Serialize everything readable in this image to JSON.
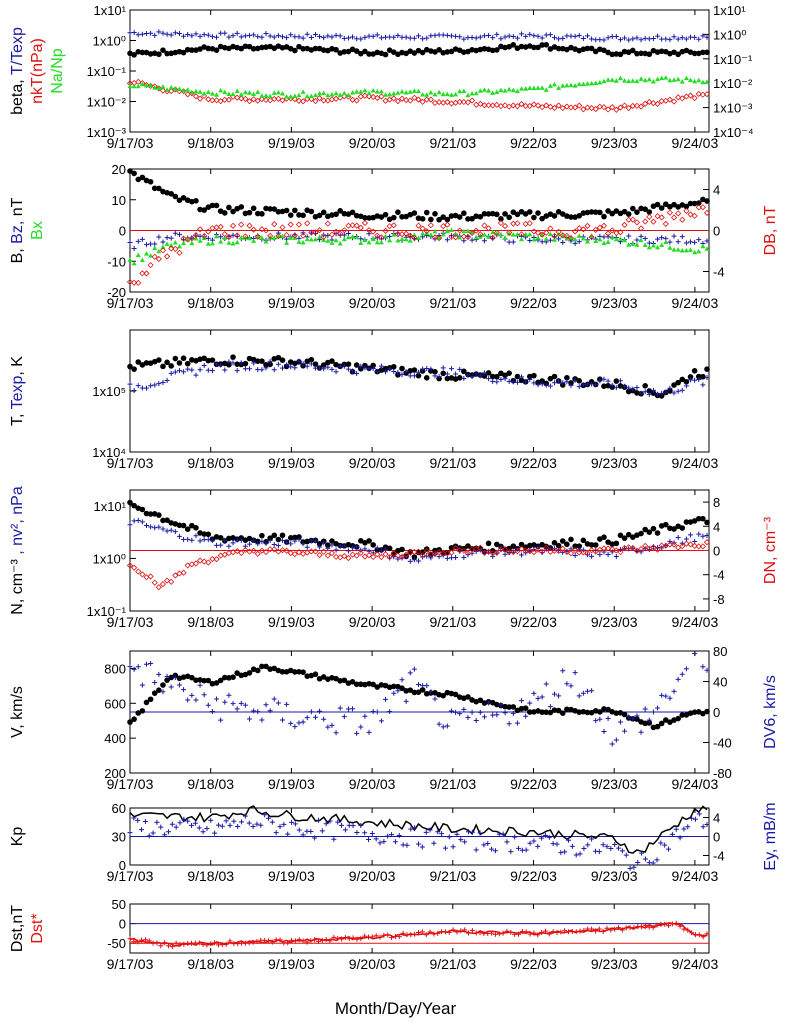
{
  "figure": {
    "x_axis_title": "Month/Day/Year",
    "dates": [
      "9/17/03",
      "9/18/03",
      "9/19/03",
      "9/20/03",
      "9/21/03",
      "9/22/03",
      "9/23/03",
      "9/24/03"
    ],
    "colors": {
      "black": "#000000",
      "blue": "#1a1aa6",
      "red": "#e01010",
      "green": "#22dd22"
    }
  },
  "panels": [
    {
      "id": "ratios",
      "left_label_parts": [
        {
          "text": "beta, ",
          "color": "black"
        },
        {
          "text": "T/Texp",
          "color": "blue"
        }
      ],
      "left_label2_parts": [
        {
          "text": "nkT(nPa)",
          "color": "red"
        }
      ],
      "left_label3_parts": [
        {
          "text": "Na/Np",
          "color": "green"
        }
      ],
      "right_label_parts": [],
      "left_ticks": [
        "1x10⁻³",
        "1x10⁻²",
        "1x10⁻¹",
        "1x10⁰",
        "1x10¹"
      ],
      "right_ticks": [
        "1x10⁻⁴",
        "1x10⁻³",
        "1x10⁻²",
        "1x10⁻¹",
        "1x10⁰",
        "1x10¹"
      ],
      "left_scale": "log",
      "left_range": [
        0.001,
        10
      ],
      "right_scale": "log",
      "right_range": [
        0.0001,
        10
      ]
    },
    {
      "id": "field",
      "left_label_parts": [
        {
          "text": "B, ",
          "color": "black"
        },
        {
          "text": "Bz, ",
          "color": "blue"
        },
        {
          "text": "nT",
          "color": "black"
        }
      ],
      "left_label2_parts": [
        {
          "text": "Bx",
          "color": "green"
        }
      ],
      "left_label3_parts": [],
      "right_label_parts": [
        {
          "text": "DB, nT",
          "color": "red"
        }
      ],
      "left_ticks": [
        "-20",
        "-10",
        "0",
        "10",
        "20"
      ],
      "right_ticks": [
        "-4",
        "0",
        "4"
      ],
      "left_range": [
        -20,
        20
      ],
      "right_range": [
        -6,
        6
      ]
    },
    {
      "id": "temperature",
      "left_label_parts": [
        {
          "text": "T, ",
          "color": "black"
        },
        {
          "text": "Texp",
          "color": "blue"
        },
        {
          "text": ", K",
          "color": "black"
        }
      ],
      "left_label2_parts": [],
      "left_label3_parts": [],
      "right_label_parts": [],
      "left_ticks": [
        "1x10⁴",
        "1x10⁵"
      ],
      "right_ticks": [],
      "left_scale": "log",
      "left_range": [
        10000,
        1000000
      ]
    },
    {
      "id": "density",
      "left_label_parts": [
        {
          "text": "N, cm⁻³",
          "color": "black"
        },
        {
          "text": " , nv², nPa",
          "color": "blue"
        }
      ],
      "left_label2_parts": [],
      "left_label3_parts": [],
      "right_label_parts": [
        {
          "text": "DN, cm⁻³",
          "color": "red"
        }
      ],
      "left_ticks": [
        "1x10⁻¹",
        "1x10⁰",
        "1x10¹"
      ],
      "right_ticks": [
        "-8",
        "-4",
        "0",
        "4",
        "8"
      ],
      "left_scale": "log",
      "left_range": [
        0.1,
        20
      ],
      "right_range": [
        -10,
        10
      ]
    },
    {
      "id": "speed",
      "left_label_parts": [
        {
          "text": "V, km/s",
          "color": "black"
        }
      ],
      "left_label2_parts": [],
      "left_label3_parts": [],
      "right_label_parts": [
        {
          "text": "DV6, km/s",
          "color": "blue"
        }
      ],
      "left_ticks": [
        "200",
        "400",
        "600",
        "800"
      ],
      "right_ticks": [
        "-80",
        "-40",
        "0",
        "40",
        "80"
      ],
      "left_range": [
        200,
        900
      ],
      "right_range": [
        -80,
        80
      ]
    },
    {
      "id": "kp",
      "left_label_parts": [
        {
          "text": "Kp",
          "color": "black"
        }
      ],
      "left_label2_parts": [],
      "left_label3_parts": [],
      "right_label_parts": [
        {
          "text": "Ey, mB/m",
          "color": "blue"
        }
      ],
      "left_ticks": [
        "0",
        "30",
        "60"
      ],
      "right_ticks": [
        "-4",
        "0",
        "4"
      ],
      "left_range": [
        0,
        60
      ],
      "right_range": [
        -6,
        6
      ]
    },
    {
      "id": "dst",
      "left_label_parts": [
        {
          "text": "Dst,nT",
          "color": "black"
        }
      ],
      "left_label2_parts": [
        {
          "text": "Dst*",
          "color": "red"
        }
      ],
      "left_label3_parts": [],
      "right_label_parts": [],
      "left_ticks": [
        "-50",
        "0",
        "50"
      ],
      "right_ticks": [],
      "left_range": [
        -75,
        50
      ]
    }
  ],
  "chart_data": [
    {
      "type": "scatter",
      "panel": "ratios",
      "x": [
        0,
        1,
        2,
        3,
        4,
        5,
        6,
        7
      ],
      "series": [
        {
          "values": [
            1.8,
            1.5,
            1.4,
            1.3,
            1.3,
            1.4,
            1.2,
            1.3
          ],
          "color": "#1a1aa6"
        },
        {
          "values": [
            0.35,
            0.55,
            0.55,
            0.4,
            0.45,
            0.7,
            0.4,
            0.4
          ],
          "color": "#000000"
        },
        {
          "values": [
            0.045,
            0.012,
            0.012,
            0.013,
            0.01,
            0.007,
            0.006,
            0.015
          ],
          "color": "#e01010"
        },
        {
          "values": [
            0.035,
            0.02,
            0.017,
            0.02,
            0.018,
            0.025,
            0.055,
            0.05
          ],
          "color": "#22dd22"
        }
      ]
    },
    {
      "type": "scatter",
      "panel": "field",
      "x": [
        0,
        0.5,
        1,
        2,
        3,
        4,
        5,
        6,
        7
      ],
      "series": [
        {
          "values": [
            19,
            11,
            7,
            6,
            5,
            4.5,
            5,
            5.5,
            9
          ],
          "color": "#000000"
        },
        {
          "values": [
            -5,
            -2,
            -2,
            -2,
            -2,
            -2,
            -3,
            -3,
            -3
          ],
          "color": "#1a1aa6"
        },
        {
          "values": [
            -10,
            -5,
            -3,
            -3,
            -3,
            -1,
            -2,
            -3,
            -6
          ],
          "color": "#22dd22"
        }
      ]
    },
    {
      "type": "scatter",
      "panel": "temperature",
      "x": [
        0,
        1,
        2,
        3,
        4,
        5,
        6,
        6.6,
        7
      ],
      "series": [
        {
          "values": [
            250000,
            320000,
            300000,
            230000,
            180000,
            160000,
            130000,
            90000,
            200000
          ],
          "color": "#000000"
        },
        {
          "values": [
            110000,
            250000,
            270000,
            220000,
            200000,
            140000,
            130000,
            90000,
            140000
          ],
          "color": "#1a1aa6"
        }
      ]
    },
    {
      "type": "scatter",
      "panel": "density",
      "x": [
        0,
        1,
        2,
        3,
        3.5,
        4,
        5,
        6,
        7
      ],
      "series": [
        {
          "values": [
            11,
            2.5,
            2.3,
            1.8,
            1.2,
            1.5,
            1.8,
            2.2,
            5
          ],
          "color": "#000000"
        },
        {
          "values": [
            5,
            2,
            2,
            1.5,
            0.9,
            1.2,
            1.4,
            1.2,
            2.5
          ],
          "color": "#1a1aa6"
        }
      ]
    },
    {
      "type": "scatter",
      "panel": "speed",
      "x": [
        0,
        0.5,
        1,
        1.7,
        2,
        3,
        4,
        4.7,
        5,
        6,
        6.5,
        7
      ],
      "series": [
        {
          "values": [
            480,
            760,
            720,
            810,
            780,
            700,
            650,
            580,
            550,
            560,
            470,
            550
          ],
          "color": "#000000"
        }
      ]
    },
    {
      "type": "line",
      "panel": "kp",
      "x": [
        0,
        1,
        1.5,
        2,
        3,
        4,
        5,
        6,
        6.3,
        7
      ],
      "series": [
        {
          "values": [
            52,
            50,
            58,
            52,
            45,
            38,
            35,
            28,
            12,
            58
          ],
          "color": "#000000"
        }
      ]
    },
    {
      "type": "line",
      "panel": "dst",
      "x": [
        0,
        0.5,
        1,
        2,
        3,
        4,
        5,
        6,
        6.8,
        7
      ],
      "series": [
        {
          "values": [
            -40,
            -55,
            -50,
            -45,
            -35,
            -20,
            -25,
            -15,
            0,
            -30
          ],
          "color": "#e01010"
        }
      ]
    }
  ]
}
